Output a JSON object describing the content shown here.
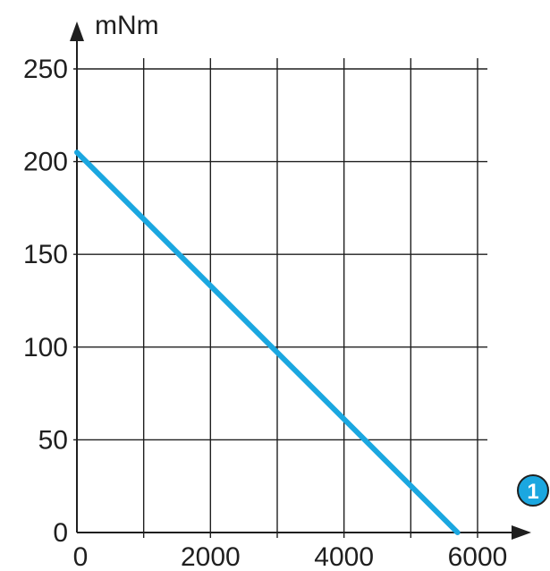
{
  "chart_data": {
    "type": "line",
    "ylabel": "mNm",
    "xlabel": "",
    "x_marker": "1",
    "xlim": [
      0,
      6000
    ],
    "ylim": [
      0,
      250
    ],
    "x_ticks": [
      0,
      2000,
      4000,
      6000
    ],
    "y_ticks": [
      0,
      50,
      100,
      150,
      200,
      250
    ],
    "x_tick_labels": [
      "0",
      "2000",
      "4000",
      "6000"
    ],
    "y_tick_labels": [
      "0",
      "50",
      "100",
      "150",
      "200",
      "250"
    ],
    "x_grid": [
      0,
      1000,
      2000,
      3000,
      4000,
      5000,
      6000
    ],
    "y_grid": [
      0,
      50,
      100,
      150,
      200,
      250
    ],
    "grid": true,
    "series": [
      {
        "color": "#1ba7e0",
        "x": [
          0,
          5700
        ],
        "y": [
          205,
          0
        ]
      }
    ]
  },
  "colors": {
    "axis": "#1f1f1f",
    "grid": "#1f1f1f",
    "badge_fill": "#1ba7e0",
    "badge_stroke": "#1f1f1f"
  }
}
